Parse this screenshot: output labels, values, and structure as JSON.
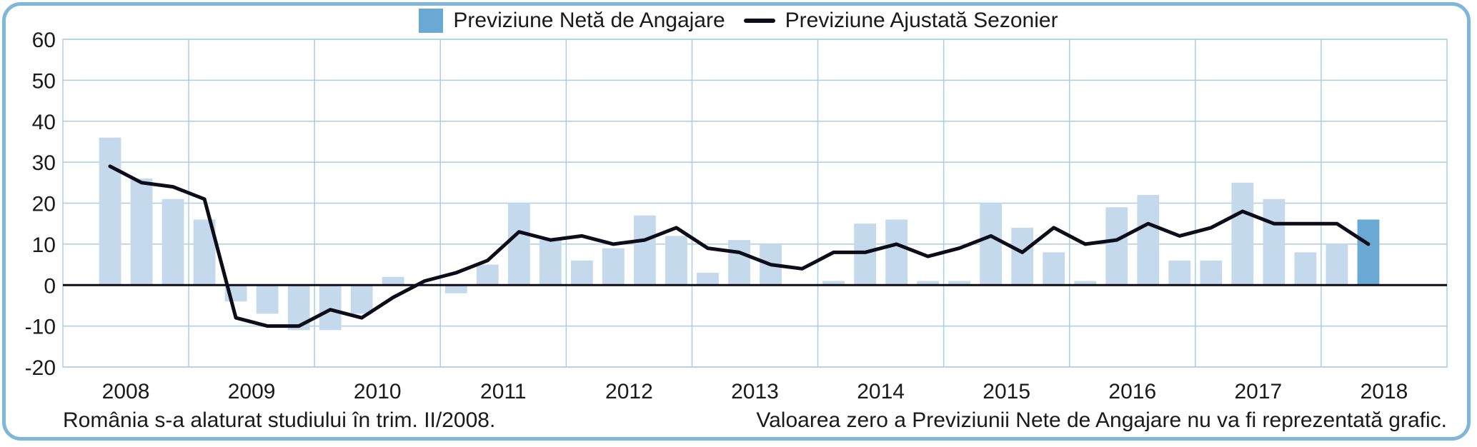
{
  "legend": {
    "bar_label": "Previziune Netă de Angajare",
    "line_label": "Previziune Ajustată Sezonier"
  },
  "colors": {
    "bar": "#c5d9ec",
    "bar_highlight": "#6aa9d4",
    "line": "#0d0d1a",
    "grid": "#a9cde5",
    "zero_line": "#0d0d1a",
    "frame": "#7fb6d9"
  },
  "footnotes": {
    "left": "România s-a alaturat studiului în trim. II/2008.",
    "right": "Valoarea zero a Previziunii Nete de Angajare nu va fi reprezentată grafic."
  },
  "chart_data": {
    "type": "bar",
    "title": "",
    "xlabel": "",
    "ylabel": "",
    "ylim": [
      -20,
      60
    ],
    "yticks": [
      60,
      50,
      40,
      30,
      20,
      10,
      0,
      -10,
      -20
    ],
    "grid": true,
    "legend_position": "top-center",
    "year_labels": [
      "2008",
      "2009",
      "2010",
      "2011",
      "2012",
      "2013",
      "2014",
      "2015",
      "2016",
      "2017",
      "2018"
    ],
    "categories": [
      "2008 T2",
      "2008 T3",
      "2008 T4",
      "2009 T1",
      "2009 T2",
      "2009 T3",
      "2009 T4",
      "2010 T1",
      "2010 T2",
      "2010 T3",
      "2010 T4",
      "2011 T1",
      "2011 T2",
      "2011 T3",
      "2011 T4",
      "2012 T1",
      "2012 T2",
      "2012 T3",
      "2012 T4",
      "2013 T1",
      "2013 T2",
      "2013 T3",
      "2013 T4",
      "2014 T1",
      "2014 T2",
      "2014 T3",
      "2014 T4",
      "2015 T1",
      "2015 T2",
      "2015 T3",
      "2015 T4",
      "2016 T1",
      "2016 T2",
      "2016 T3",
      "2016 T4",
      "2017 T1",
      "2017 T2",
      "2017 T3",
      "2017 T4",
      "2018 T1",
      "2018 T2"
    ],
    "series": [
      {
        "name": "Previziune Netă de Angajare",
        "kind": "bar",
        "highlight_last": true,
        "values": [
          36,
          26,
          21,
          16,
          -4,
          -7,
          -11,
          -11,
          -7,
          2,
          0,
          -2,
          5,
          20,
          11,
          6,
          9,
          17,
          12,
          3,
          11,
          10,
          0,
          1,
          15,
          16,
          1,
          1,
          20,
          14,
          8,
          1,
          19,
          22,
          6,
          6,
          25,
          21,
          8,
          10,
          16
        ]
      },
      {
        "name": "Previziune Ajustată Sezonier",
        "kind": "line",
        "values": [
          29,
          25,
          24,
          21,
          -8,
          -10,
          -10,
          -6,
          -8,
          -3,
          1,
          3,
          6,
          13,
          11,
          12,
          10,
          11,
          14,
          9,
          8,
          5,
          4,
          8,
          8,
          10,
          7,
          9,
          12,
          8,
          14,
          10,
          11,
          15,
          12,
          14,
          18,
          15,
          15,
          15,
          10
        ]
      }
    ]
  }
}
